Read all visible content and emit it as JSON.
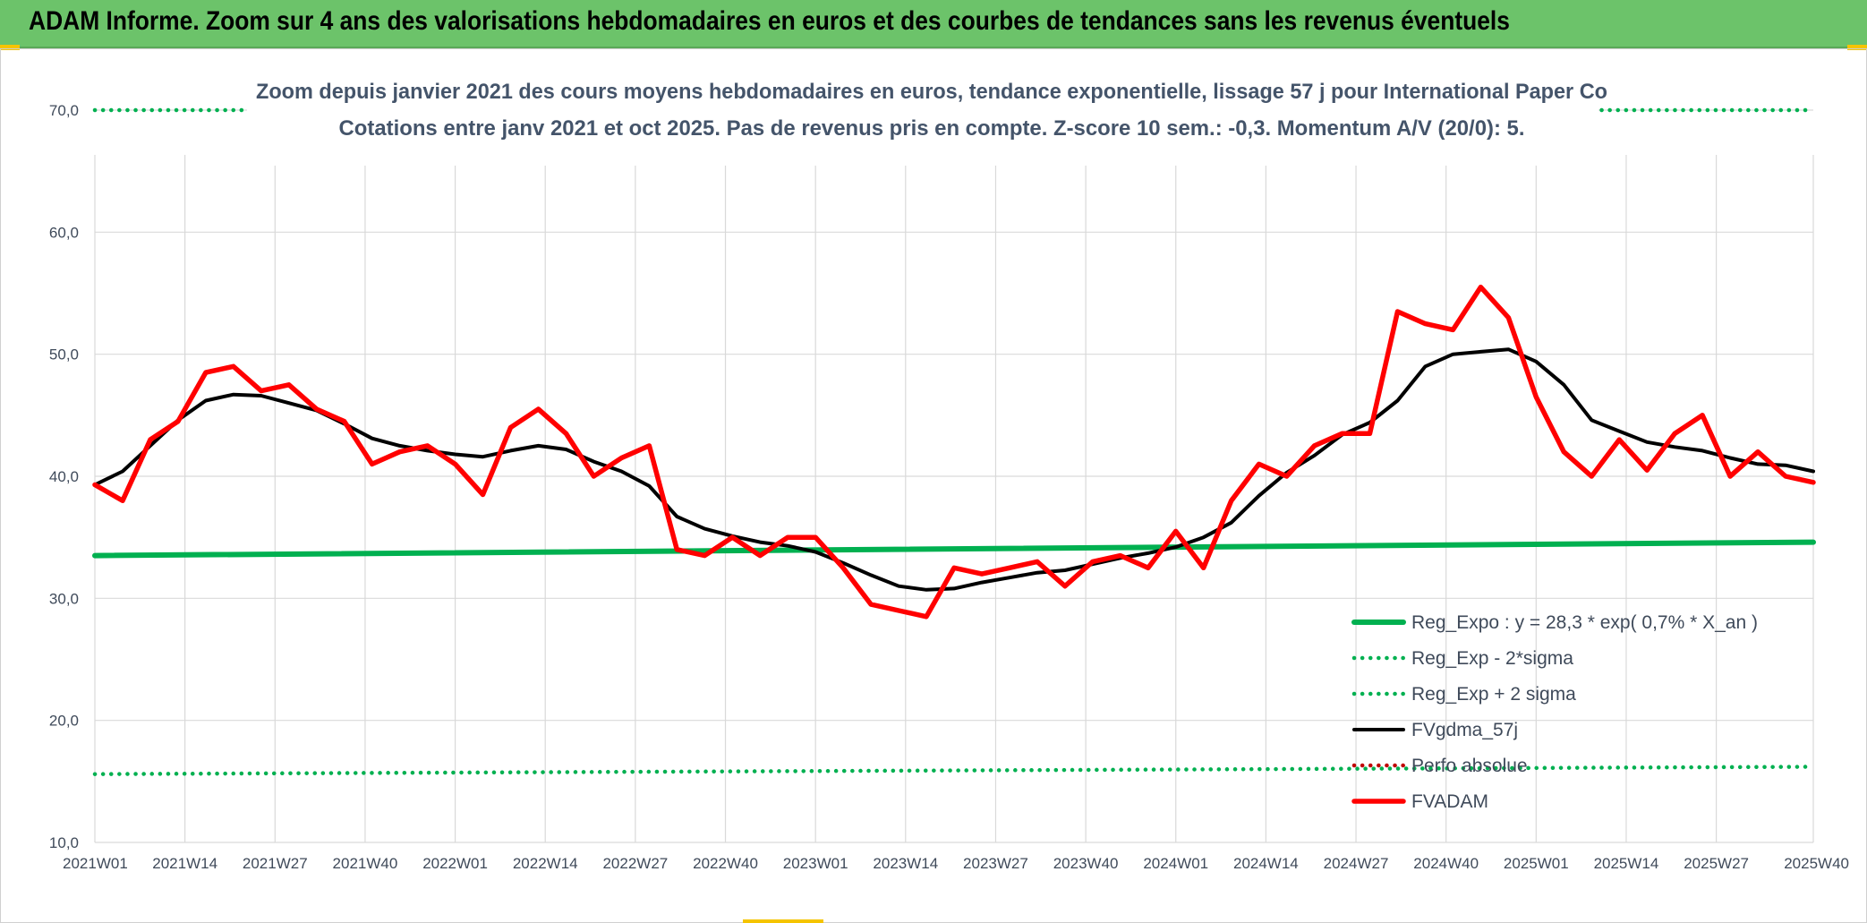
{
  "banner": {
    "title": "ADAM Informe. Zoom sur 4 ans des valorisations hebdomadaires en euros et des courbes de tendances sans les revenus éventuels"
  },
  "colors": {
    "banner": "#6cc36a",
    "reg_expo": "#00b050",
    "fvgdma": "#000000",
    "fvadam": "#ff0000",
    "perfo": "#c00000",
    "grid": "#d9d9d9",
    "text": "#44546a"
  },
  "chart_data": {
    "type": "line",
    "title": "Zoom depuis janvier 2021 des cours moyens hebdomadaires en euros, tendance exponentielle, lissage 57 j pour International Paper Co",
    "subtitle": "Cotations entre janv 2021 et oct 2025. Pas de revenus pris en compte. Z-score 10 sem.: -0,3. Momentum A/V (20/0): 5.",
    "xlabel": "",
    "ylabel": "",
    "ylim": [
      10,
      70
    ],
    "y_ticks": [
      "10,0",
      "20,0",
      "30,0",
      "40,0",
      "50,0",
      "60,0",
      "70,0"
    ],
    "x_ticks": [
      "2021W01",
      "2021W14",
      "2021W27",
      "2021W40",
      "2022W01",
      "2022W14",
      "2022W27",
      "2022W40",
      "2023W01",
      "2023W14",
      "2023W27",
      "2023W40",
      "2024W01",
      "2024W14",
      "2024W27",
      "2024W40",
      "2025W01",
      "2025W14",
      "2025W27",
      "2025W40"
    ],
    "grid": true,
    "legend_position": "bottom-right",
    "x_weeks": [
      0,
      4,
      8,
      12,
      16,
      20,
      24,
      28,
      32,
      36,
      40,
      44,
      48,
      52,
      56,
      60,
      64,
      68,
      72,
      76,
      80,
      84,
      88,
      92,
      96,
      100,
      104,
      108,
      112,
      116,
      120,
      124,
      128,
      132,
      136,
      140,
      144,
      148,
      152,
      156,
      160,
      164,
      168,
      172,
      176,
      180,
      184,
      188,
      192,
      196,
      200,
      204,
      208,
      212,
      216,
      220,
      224,
      228,
      232,
      236,
      240,
      244,
      248
    ],
    "series": [
      {
        "name": "Reg_Expo : y = 28,3 * exp( 0,7% *  X_an )",
        "style": "solid",
        "color": "#00b050",
        "x": [
          0,
          248
        ],
        "values": [
          33.5,
          34.6
        ]
      },
      {
        "name": "Reg_Exp - 2*sigma",
        "style": "dotted",
        "color": "#00b050",
        "x": [
          0,
          248
        ],
        "values": [
          15.6,
          16.2
        ]
      },
      {
        "name": "Reg_Exp + 2 sigma",
        "style": "dotted",
        "color": "#00b050",
        "x": [
          0,
          248
        ],
        "values": [
          70.0,
          70.0
        ]
      },
      {
        "name": "FVgdma_57j",
        "style": "solid",
        "color": "#000000",
        "values": [
          39.3,
          40.4,
          42.5,
          44.6,
          46.2,
          46.7,
          46.6,
          46.0,
          45.4,
          44.3,
          43.1,
          42.5,
          42.1,
          41.8,
          41.6,
          42.1,
          42.5,
          42.2,
          41.2,
          40.4,
          39.2,
          36.7,
          35.7,
          35.1,
          34.6,
          34.3,
          33.8,
          32.9,
          31.9,
          31.0,
          30.7,
          30.8,
          31.3,
          31.7,
          32.1,
          32.3,
          32.8,
          33.3,
          33.7,
          34.2,
          35.0,
          36.2,
          38.4,
          40.3,
          41.7,
          43.4,
          44.4,
          46.2,
          49.0,
          50.0,
          50.2,
          50.4,
          49.4,
          47.5,
          44.6,
          43.7,
          42.8,
          42.4,
          42.1,
          41.5,
          41.0,
          40.9,
          40.4
        ]
      },
      {
        "name": "Perfo absolue",
        "style": "dotted",
        "color": "#c00000",
        "values": []
      },
      {
        "name": "FVADAM",
        "style": "solid",
        "color": "#ff0000",
        "values": [
          39.3,
          38.0,
          43.0,
          44.5,
          48.5,
          49.0,
          47.0,
          47.5,
          45.5,
          44.5,
          41.0,
          42.0,
          42.5,
          41.0,
          38.5,
          44.0,
          45.5,
          43.5,
          40.0,
          41.5,
          42.5,
          34.0,
          33.5,
          35.0,
          33.5,
          35.0,
          35.0,
          32.5,
          29.5,
          29.0,
          28.5,
          32.5,
          32.0,
          32.5,
          33.0,
          31.0,
          33.0,
          33.5,
          32.5,
          35.5,
          32.5,
          38.0,
          41.0,
          40.0,
          42.5,
          43.5,
          43.5,
          53.5,
          52.5,
          52.0,
          55.5,
          53.0,
          46.5,
          42.0,
          40.0,
          43.0,
          40.5,
          43.5,
          45.0,
          40.0,
          42.0,
          40.0,
          39.5
        ]
      }
    ]
  }
}
